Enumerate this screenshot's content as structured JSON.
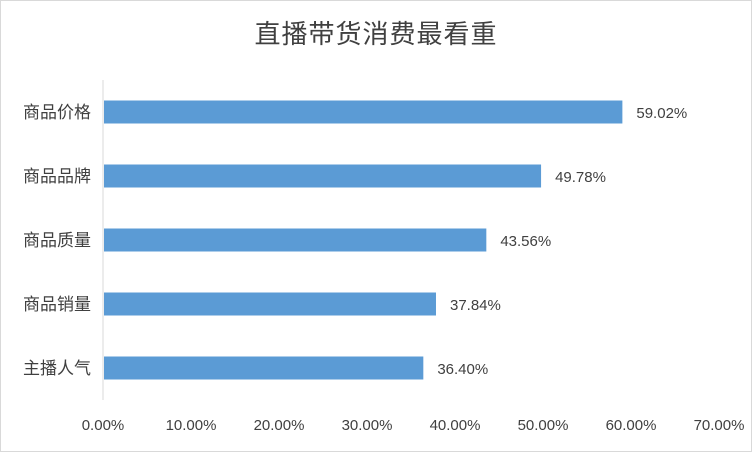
{
  "chart_data": {
    "type": "bar",
    "orientation": "horizontal",
    "title": "直播带货消费最看重",
    "categories": [
      "商品价格",
      "商品品牌",
      "商品质量",
      "商品销量",
      "主播人气"
    ],
    "values": [
      59.02,
      49.78,
      43.56,
      37.84,
      36.4
    ],
    "value_labels": [
      "59.02%",
      "49.78%",
      "43.56%",
      "37.84%",
      "36.40%"
    ],
    "xlim": [
      0,
      70
    ],
    "xticks": [
      0,
      10,
      20,
      30,
      40,
      50,
      60,
      70
    ],
    "xtick_labels": [
      "0.00%",
      "10.00%",
      "20.00%",
      "30.00%",
      "40.00%",
      "50.00%",
      "60.00%",
      "70.00%"
    ],
    "grid": false,
    "legend": "none",
    "colors": {
      "bar": "#5B9BD5",
      "axis": "#d9d9d9",
      "text": "#404040"
    }
  }
}
